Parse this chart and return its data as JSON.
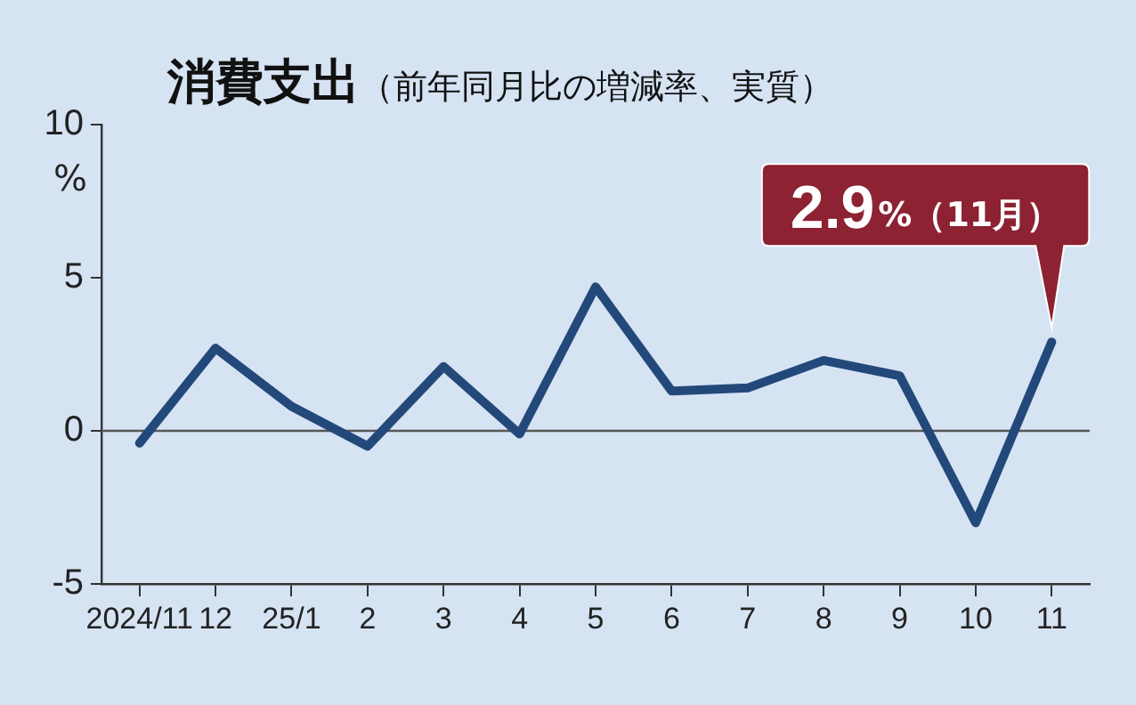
{
  "chart_data": {
    "type": "line",
    "title": "消費支出",
    "subtitle": "（前年同月比の増減率、実質）",
    "ylabel": "%",
    "categories": [
      "2024/11",
      "12",
      "25/1",
      "2",
      "3",
      "4",
      "5",
      "6",
      "7",
      "8",
      "9",
      "10",
      "11"
    ],
    "series": [
      {
        "color": "#23497a",
        "values": [
          -0.4,
          2.7,
          0.8,
          -0.5,
          2.1,
          -0.1,
          4.7,
          1.3,
          1.4,
          2.3,
          1.8,
          -3.0,
          2.9
        ]
      }
    ],
    "ylim": [
      -5,
      10
    ],
    "yticks": [
      -5,
      0,
      5,
      10
    ],
    "ref_lines": [
      {
        "axis": "y",
        "value": 0,
        "color": "#555555"
      }
    ],
    "annotations": [
      {
        "text": "2.9%（11月）",
        "x": "11",
        "y": 2.9
      }
    ],
    "grid": false,
    "legend": false,
    "marker": "none",
    "line_style": "solid"
  }
}
